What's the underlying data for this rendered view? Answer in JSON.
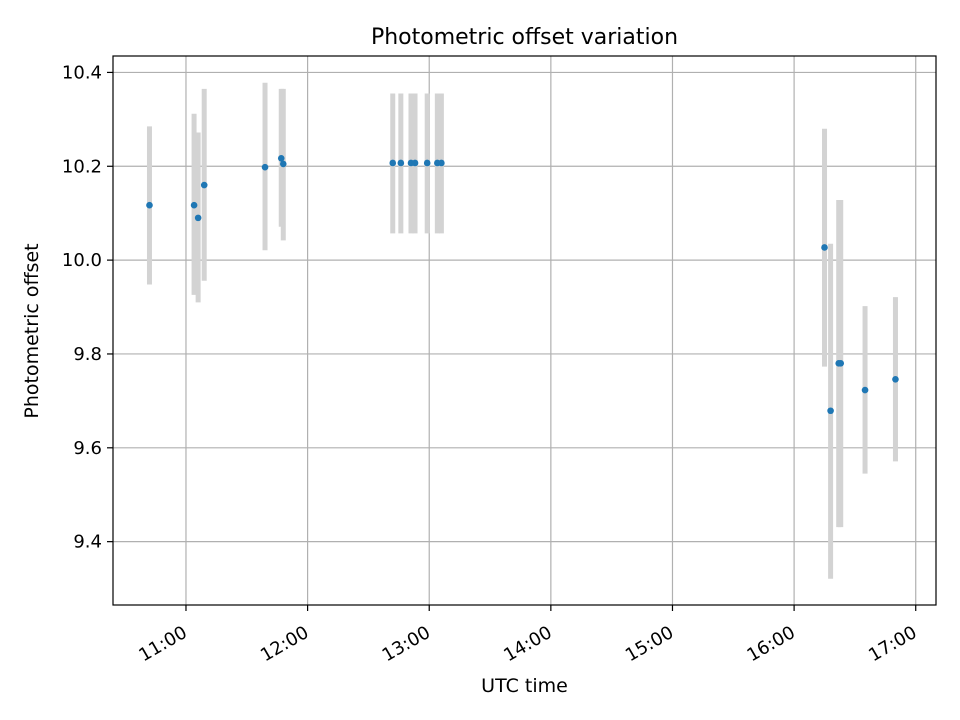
{
  "chart_data": {
    "type": "scatter",
    "title": "Photometric offset variation",
    "xlabel": "UTC time",
    "ylabel": "Photometric offset",
    "x_ticks": [
      "11:00",
      "12:00",
      "13:00",
      "14:00",
      "15:00",
      "16:00",
      "17:00"
    ],
    "y_ticks": [
      "9.4",
      "9.6",
      "9.8",
      "10.0",
      "10.2",
      "10.4"
    ],
    "xlim": [
      "10:24",
      "17:10"
    ],
    "ylim": [
      9.265,
      10.435
    ],
    "grid": true,
    "colors": {
      "point": "#1f77b4",
      "errorbar": "#d3d3d3",
      "grid": "#b0b0b0"
    },
    "points": [
      {
        "x": "10:42",
        "y": 10.117,
        "yerr_low": 9.948,
        "yerr_high": 10.285
      },
      {
        "x": "11:04",
        "y": 10.117,
        "yerr_low": 9.926,
        "yerr_high": 10.312
      },
      {
        "x": "11:06",
        "y": 10.09,
        "yerr_low": 9.91,
        "yerr_high": 10.272
      },
      {
        "x": "11:09",
        "y": 10.16,
        "yerr_low": 9.956,
        "yerr_high": 10.365
      },
      {
        "x": "11:39",
        "y": 10.198,
        "yerr_low": 10.021,
        "yerr_high": 10.378
      },
      {
        "x": "11:47",
        "y": 10.217,
        "yerr_low": 10.071,
        "yerr_high": 10.365
      },
      {
        "x": "11:48",
        "y": 10.205,
        "yerr_low": 10.042,
        "yerr_high": 10.365
      },
      {
        "x": "12:42",
        "y": 10.207,
        "yerr_low": 10.057,
        "yerr_high": 10.355
      },
      {
        "x": "12:46",
        "y": 10.207,
        "yerr_low": 10.057,
        "yerr_high": 10.355
      },
      {
        "x": "12:51",
        "y": 10.207,
        "yerr_low": 10.057,
        "yerr_high": 10.355
      },
      {
        "x": "12:53",
        "y": 10.207,
        "yerr_low": 10.057,
        "yerr_high": 10.355
      },
      {
        "x": "12:59",
        "y": 10.207,
        "yerr_low": 10.057,
        "yerr_high": 10.355
      },
      {
        "x": "13:04",
        "y": 10.207,
        "yerr_low": 10.057,
        "yerr_high": 10.355
      },
      {
        "x": "13:06",
        "y": 10.207,
        "yerr_low": 10.057,
        "yerr_high": 10.355
      },
      {
        "x": "16:15",
        "y": 10.027,
        "yerr_low": 9.773,
        "yerr_high": 10.28
      },
      {
        "x": "16:18",
        "y": 9.679,
        "yerr_low": 9.321,
        "yerr_high": 10.035
      },
      {
        "x": "16:22",
        "y": 9.78,
        "yerr_low": 9.431,
        "yerr_high": 10.128
      },
      {
        "x": "16:23",
        "y": 9.78,
        "yerr_low": 9.431,
        "yerr_high": 10.128
      },
      {
        "x": "16:35",
        "y": 9.723,
        "yerr_low": 9.545,
        "yerr_high": 9.902
      },
      {
        "x": "16:50",
        "y": 9.746,
        "yerr_low": 9.571,
        "yerr_high": 9.921
      }
    ]
  }
}
